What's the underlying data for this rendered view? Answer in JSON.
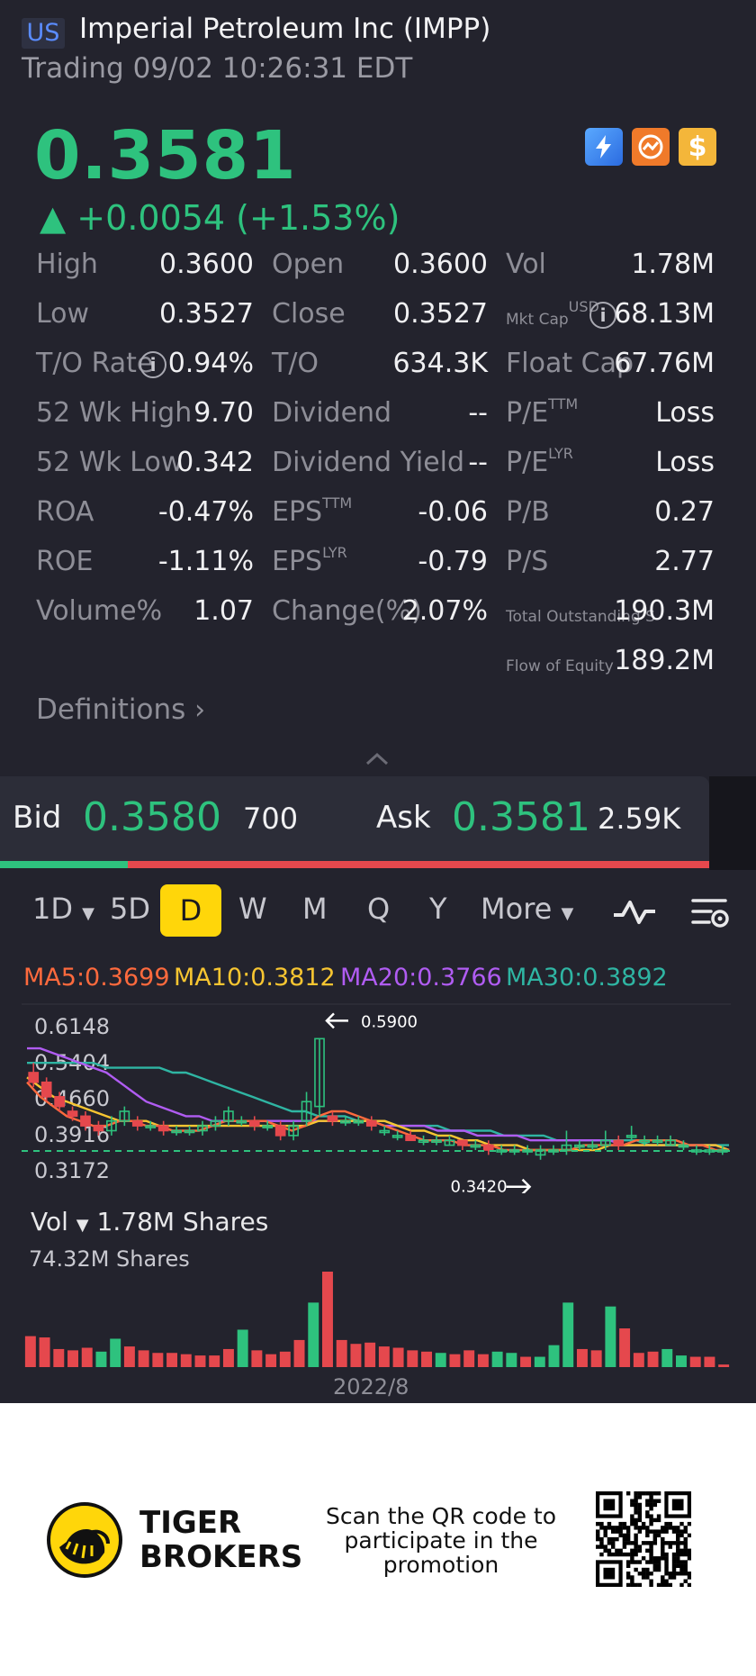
{
  "header": {
    "market_badge": "US",
    "title": "Imperial Petroleum Inc (IMPP)",
    "trading_status": "Trading 09/02 10:26:31 EDT"
  },
  "quote": {
    "price": "0.3581",
    "change": "▲ +0.0054 (+1.53%)",
    "icons": [
      "lightning-level1-icon",
      "trend-icon",
      "dollar-icon"
    ],
    "accent_up": "#2ec27e",
    "accent_down": "#e5484d"
  },
  "stats": {
    "high_label": "High",
    "high": "0.3600",
    "open_label": "Open",
    "open": "0.3600",
    "vol_label": "Vol",
    "vol": "1.78M",
    "low_label": "Low",
    "low": "0.3527",
    "close_label": "Close",
    "close": "0.3527",
    "mktcap_label": "Mkt Cap",
    "mktcap_sup": "USD",
    "mktcap": "68.13M",
    "to_rate_label": "T/O Rate",
    "to_rate": "0.94%",
    "to_label": "T/O",
    "to": "634.3K",
    "float_cap_label": "Float Cap",
    "float_cap": "67.76M",
    "wk52_high_label": "52 Wk High",
    "wk52_high": "9.70",
    "dividend_label": "Dividend",
    "dividend": "--",
    "pe_ttm_label": "P/E",
    "pe_ttm_sup": "TTM",
    "pe_ttm": "Loss",
    "wk52_low_label": "52 Wk Low",
    "wk52_low": "0.342",
    "div_yield_label": "Dividend Yield",
    "div_yield": "--",
    "pe_lyr_label": "P/E",
    "pe_lyr_sup": "LYR",
    "pe_lyr": "Loss",
    "roa_label": "ROA",
    "roa": "-0.47%",
    "eps_ttm_label": "EPS",
    "eps_ttm_sup": "TTM",
    "eps_ttm": "-0.06",
    "pb_label": "P/B",
    "pb": "0.27",
    "roe_label": "ROE",
    "roe": "-1.11%",
    "eps_lyr_label": "EPS",
    "eps_lyr_sup": "LYR",
    "eps_lyr": "-0.79",
    "ps_label": "P/S",
    "ps": "2.77",
    "volume_pct_label": "Volume%",
    "volume_pct": "1.07",
    "change_pct_label": "Change(%)",
    "change_pct": "2.07%",
    "total_out_label": "Total Outstanding S",
    "total_out": "190.3M",
    "flow_equity_label": "Flow of Equity",
    "flow_equity": "189.2M",
    "definitions": "Definitions"
  },
  "orderbook": {
    "bid_label": "Bid",
    "bid": "0.3580",
    "bid_size": "700",
    "ask_label": "Ask",
    "ask": "0.3581",
    "ask_size": "2.59K",
    "bid_ratio": 0.18
  },
  "periods": {
    "items": [
      "1D",
      "5D",
      "D",
      "W",
      "M",
      "Q",
      "Y",
      "More"
    ],
    "active": "D"
  },
  "ma": {
    "ma5": "MA5:0.3699",
    "ma10": "MA10:0.3812",
    "ma20": "MA20:0.3766",
    "ma30": "MA30:0.3892",
    "colors": {
      "ma5": "#ff6a3d",
      "ma10": "#f7c531",
      "ma20": "#b05cf2",
      "ma30": "#2fb5a3"
    }
  },
  "chart_data": {
    "type": "candlestick",
    "y_ticks": [
      "0.6148",
      "0.5404",
      "0.4660",
      "0.3916",
      "0.3172"
    ],
    "max_annotation": "0.5900",
    "min_annotation": "0.3420",
    "current_line": 0.3581,
    "ylim": [
      0.3172,
      0.6148
    ],
    "candles": [
      {
        "o": 0.52,
        "c": 0.5,
        "h": 0.54,
        "l": 0.49
      },
      {
        "o": 0.5,
        "c": 0.47,
        "h": 0.51,
        "l": 0.46
      },
      {
        "o": 0.47,
        "c": 0.45,
        "h": 0.48,
        "l": 0.44
      },
      {
        "o": 0.44,
        "c": 0.43,
        "h": 0.45,
        "l": 0.42
      },
      {
        "o": 0.43,
        "c": 0.41,
        "h": 0.44,
        "l": 0.4
      },
      {
        "o": 0.41,
        "c": 0.4,
        "h": 0.42,
        "l": 0.39
      },
      {
        "o": 0.4,
        "c": 0.42,
        "h": 0.43,
        "l": 0.39
      },
      {
        "o": 0.42,
        "c": 0.44,
        "h": 0.45,
        "l": 0.41
      },
      {
        "o": 0.42,
        "c": 0.41,
        "h": 0.43,
        "l": 0.4
      },
      {
        "o": 0.41,
        "c": 0.41,
        "h": 0.42,
        "l": 0.4
      },
      {
        "o": 0.41,
        "c": 0.4,
        "h": 0.42,
        "l": 0.39
      },
      {
        "o": 0.4,
        "c": 0.4,
        "h": 0.41,
        "l": 0.39
      },
      {
        "o": 0.4,
        "c": 0.4,
        "h": 0.41,
        "l": 0.39
      },
      {
        "o": 0.4,
        "c": 0.41,
        "h": 0.42,
        "l": 0.39
      },
      {
        "o": 0.41,
        "c": 0.42,
        "h": 0.43,
        "l": 0.4
      },
      {
        "o": 0.42,
        "c": 0.44,
        "h": 0.45,
        "l": 0.41
      },
      {
        "o": 0.42,
        "c": 0.42,
        "h": 0.43,
        "l": 0.41
      },
      {
        "o": 0.42,
        "c": 0.41,
        "h": 0.43,
        "l": 0.4
      },
      {
        "o": 0.41,
        "c": 0.41,
        "h": 0.42,
        "l": 0.4
      },
      {
        "o": 0.41,
        "c": 0.39,
        "h": 0.42,
        "l": 0.38
      },
      {
        "o": 0.39,
        "c": 0.41,
        "h": 0.42,
        "l": 0.38
      },
      {
        "o": 0.42,
        "c": 0.46,
        "h": 0.48,
        "l": 0.41
      },
      {
        "o": 0.45,
        "c": 0.59,
        "h": 0.59,
        "l": 0.43
      },
      {
        "o": 0.43,
        "c": 0.42,
        "h": 0.44,
        "l": 0.41
      },
      {
        "o": 0.42,
        "c": 0.42,
        "h": 0.43,
        "l": 0.41
      },
      {
        "o": 0.42,
        "c": 0.42,
        "h": 0.43,
        "l": 0.41
      },
      {
        "o": 0.42,
        "c": 0.41,
        "h": 0.43,
        "l": 0.4
      },
      {
        "o": 0.4,
        "c": 0.4,
        "h": 0.41,
        "l": 0.39
      },
      {
        "o": 0.39,
        "c": 0.39,
        "h": 0.4,
        "l": 0.38
      },
      {
        "o": 0.39,
        "c": 0.38,
        "h": 0.4,
        "l": 0.38
      },
      {
        "o": 0.38,
        "c": 0.38,
        "h": 0.39,
        "l": 0.37
      },
      {
        "o": 0.38,
        "c": 0.38,
        "h": 0.39,
        "l": 0.37
      },
      {
        "o": 0.37,
        "c": 0.38,
        "h": 0.39,
        "l": 0.37
      },
      {
        "o": 0.38,
        "c": 0.37,
        "h": 0.38,
        "l": 0.36
      },
      {
        "o": 0.37,
        "c": 0.37,
        "h": 0.38,
        "l": 0.36
      },
      {
        "o": 0.37,
        "c": 0.36,
        "h": 0.38,
        "l": 0.35
      },
      {
        "o": 0.36,
        "c": 0.36,
        "h": 0.37,
        "l": 0.35
      },
      {
        "o": 0.36,
        "c": 0.36,
        "h": 0.37,
        "l": 0.35
      },
      {
        "o": 0.36,
        "c": 0.36,
        "h": 0.37,
        "l": 0.35
      },
      {
        "o": 0.35,
        "c": 0.36,
        "h": 0.37,
        "l": 0.34
      },
      {
        "o": 0.36,
        "c": 0.36,
        "h": 0.37,
        "l": 0.35
      },
      {
        "o": 0.36,
        "c": 0.37,
        "h": 0.4,
        "l": 0.35
      },
      {
        "o": 0.37,
        "c": 0.37,
        "h": 0.38,
        "l": 0.36
      },
      {
        "o": 0.37,
        "c": 0.37,
        "h": 0.38,
        "l": 0.36
      },
      {
        "o": 0.37,
        "c": 0.38,
        "h": 0.4,
        "l": 0.36
      },
      {
        "o": 0.38,
        "c": 0.37,
        "h": 0.39,
        "l": 0.36
      },
      {
        "o": 0.39,
        "c": 0.39,
        "h": 0.41,
        "l": 0.38
      },
      {
        "o": 0.38,
        "c": 0.38,
        "h": 0.39,
        "l": 0.37
      },
      {
        "o": 0.38,
        "c": 0.38,
        "h": 0.39,
        "l": 0.37
      },
      {
        "o": 0.37,
        "c": 0.38,
        "h": 0.39,
        "l": 0.37
      },
      {
        "o": 0.37,
        "c": 0.37,
        "h": 0.38,
        "l": 0.36
      },
      {
        "o": 0.36,
        "c": 0.36,
        "h": 0.37,
        "l": 0.35
      },
      {
        "o": 0.36,
        "c": 0.36,
        "h": 0.37,
        "l": 0.35
      },
      {
        "o": 0.36,
        "c": 0.36,
        "h": 0.37,
        "l": 0.35
      }
    ],
    "ma_series": {
      "ma5": [
        0.5,
        0.47,
        0.45,
        0.43,
        0.42,
        0.41,
        0.41,
        0.42,
        0.42,
        0.41,
        0.41,
        0.4,
        0.4,
        0.4,
        0.41,
        0.42,
        0.42,
        0.42,
        0.42,
        0.41,
        0.4,
        0.41,
        0.43,
        0.44,
        0.44,
        0.43,
        0.42,
        0.41,
        0.4,
        0.39,
        0.38,
        0.38,
        0.38,
        0.37,
        0.37,
        0.37,
        0.36,
        0.36,
        0.36,
        0.36,
        0.36,
        0.36,
        0.37,
        0.37,
        0.37,
        0.37,
        0.38,
        0.38,
        0.38,
        0.38,
        0.37,
        0.37,
        0.36,
        0.36
      ],
      "ma10": [
        0.51,
        0.49,
        0.47,
        0.46,
        0.45,
        0.44,
        0.43,
        0.42,
        0.42,
        0.42,
        0.41,
        0.41,
        0.41,
        0.41,
        0.41,
        0.41,
        0.41,
        0.41,
        0.41,
        0.41,
        0.41,
        0.41,
        0.42,
        0.42,
        0.42,
        0.42,
        0.42,
        0.42,
        0.41,
        0.4,
        0.4,
        0.39,
        0.39,
        0.38,
        0.38,
        0.37,
        0.37,
        0.37,
        0.36,
        0.36,
        0.36,
        0.36,
        0.36,
        0.36,
        0.37,
        0.37,
        0.37,
        0.37,
        0.37,
        0.37,
        0.37,
        0.37,
        0.37,
        0.36
      ],
      "ma20": [
        0.57,
        0.57,
        0.56,
        0.55,
        0.54,
        0.53,
        0.52,
        0.5,
        0.48,
        0.46,
        0.45,
        0.44,
        0.43,
        0.43,
        0.42,
        0.42,
        0.42,
        0.42,
        0.42,
        0.42,
        0.42,
        0.42,
        0.42,
        0.42,
        0.42,
        0.42,
        0.42,
        0.41,
        0.41,
        0.41,
        0.41,
        0.4,
        0.4,
        0.4,
        0.39,
        0.39,
        0.39,
        0.39,
        0.38,
        0.38,
        0.38,
        0.38,
        0.38,
        0.38,
        0.38,
        0.37,
        0.37,
        0.37,
        0.37,
        0.37,
        0.37,
        0.37,
        0.37,
        0.36
      ],
      "ma30": [
        0.54,
        0.54,
        0.54,
        0.54,
        0.54,
        0.54,
        0.53,
        0.53,
        0.53,
        0.53,
        0.53,
        0.52,
        0.52,
        0.51,
        0.5,
        0.49,
        0.48,
        0.47,
        0.46,
        0.45,
        0.44,
        0.44,
        0.43,
        0.43,
        0.43,
        0.42,
        0.42,
        0.42,
        0.41,
        0.41,
        0.41,
        0.41,
        0.4,
        0.4,
        0.4,
        0.4,
        0.39,
        0.39,
        0.39,
        0.39,
        0.38,
        0.38,
        0.38,
        0.38,
        0.38,
        0.38,
        0.38,
        0.37,
        0.37,
        0.37,
        0.37,
        0.37,
        0.37,
        0.37
      ]
    }
  },
  "volume": {
    "header_label": "Vol",
    "header_value": "1.78M Shares",
    "max_label": "74.32M Shares",
    "date_label": "2022/8",
    "bars": [
      {
        "v": 24,
        "up": false
      },
      {
        "v": 23,
        "up": false
      },
      {
        "v": 14,
        "up": false
      },
      {
        "v": 13,
        "up": false
      },
      {
        "v": 15,
        "up": false
      },
      {
        "v": 12,
        "up": true
      },
      {
        "v": 22,
        "up": true
      },
      {
        "v": 16,
        "up": false
      },
      {
        "v": 13,
        "up": false
      },
      {
        "v": 11,
        "up": false
      },
      {
        "v": 11,
        "up": false
      },
      {
        "v": 10,
        "up": false
      },
      {
        "v": 9,
        "up": false
      },
      {
        "v": 9,
        "up": false
      },
      {
        "v": 14,
        "up": false
      },
      {
        "v": 29,
        "up": true
      },
      {
        "v": 13,
        "up": false
      },
      {
        "v": 10,
        "up": false
      },
      {
        "v": 12,
        "up": false
      },
      {
        "v": 21,
        "up": false
      },
      {
        "v": 50,
        "up": true
      },
      {
        "v": 74,
        "up": false
      },
      {
        "v": 21,
        "up": false
      },
      {
        "v": 18,
        "up": false
      },
      {
        "v": 19,
        "up": false
      },
      {
        "v": 16,
        "up": false
      },
      {
        "v": 15,
        "up": false
      },
      {
        "v": 13,
        "up": false
      },
      {
        "v": 12,
        "up": false
      },
      {
        "v": 11,
        "up": true
      },
      {
        "v": 10,
        "up": false
      },
      {
        "v": 13,
        "up": false
      },
      {
        "v": 10,
        "up": false
      },
      {
        "v": 12,
        "up": true
      },
      {
        "v": 11,
        "up": true
      },
      {
        "v": 8,
        "up": false
      },
      {
        "v": 8,
        "up": true
      },
      {
        "v": 17,
        "up": true
      },
      {
        "v": 50,
        "up": true
      },
      {
        "v": 14,
        "up": false
      },
      {
        "v": 13,
        "up": false
      },
      {
        "v": 47,
        "up": true
      },
      {
        "v": 30,
        "up": false
      },
      {
        "v": 11,
        "up": false
      },
      {
        "v": 12,
        "up": false
      },
      {
        "v": 14,
        "up": true
      },
      {
        "v": 9,
        "up": true
      },
      {
        "v": 8,
        "up": false
      },
      {
        "v": 8,
        "up": false
      },
      {
        "v": 2,
        "up": false
      }
    ]
  },
  "footer": {
    "brand_line1": "TIGER",
    "brand_line2": "BROKERS",
    "promo": "Scan the QR code to participate in the promotion"
  }
}
